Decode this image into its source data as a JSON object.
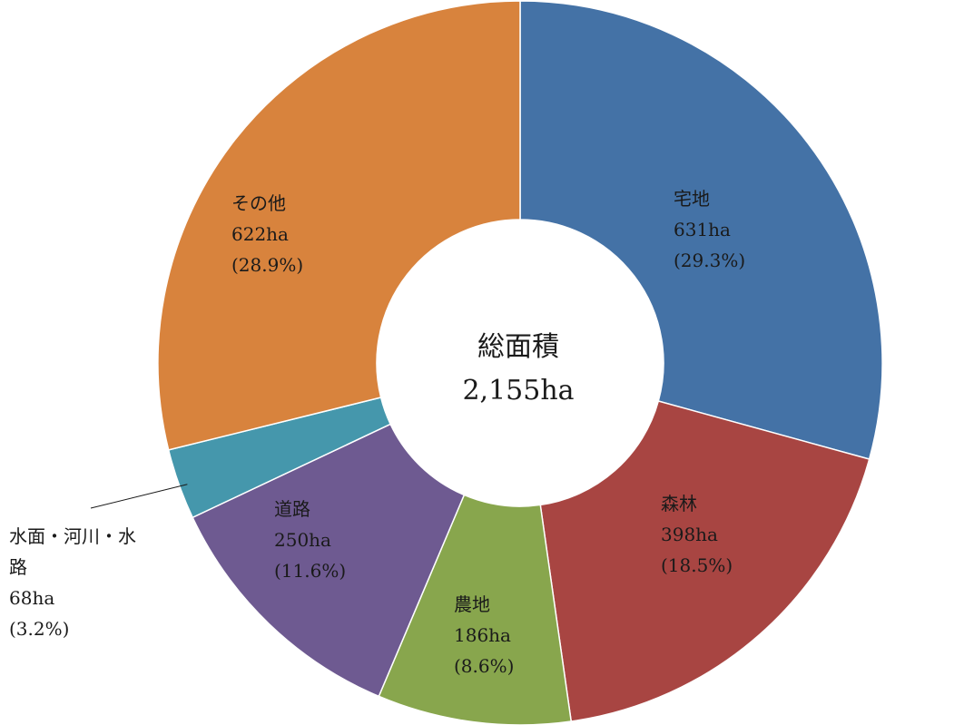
{
  "chart_data": {
    "type": "pie",
    "donut": true,
    "center_text": {
      "title": "総面積",
      "value": "2,155ha"
    },
    "series": [
      {
        "values": [
          631,
          398,
          186,
          250,
          68,
          622
        ],
        "categories": [
          "宅地",
          "森林",
          "農地",
          "道路",
          "水面・河川・水路",
          "その他"
        ],
        "value_labels": [
          "631ha",
          "398ha",
          "186ha",
          "250ha",
          "68ha",
          "622ha"
        ],
        "percent_labels": [
          "(29.3%)",
          "(18.5%)",
          "(8.6%)",
          "(11.6%)",
          "(3.2%)",
          "(28.9%)"
        ],
        "colors": [
          "#4472a6",
          "#a84542",
          "#88a64d",
          "#6e5a91",
          "#4597ac",
          "#d8833d"
        ]
      }
    ],
    "start_angle": "12 o'clock",
    "direction": "clockwise",
    "legend": "none"
  }
}
